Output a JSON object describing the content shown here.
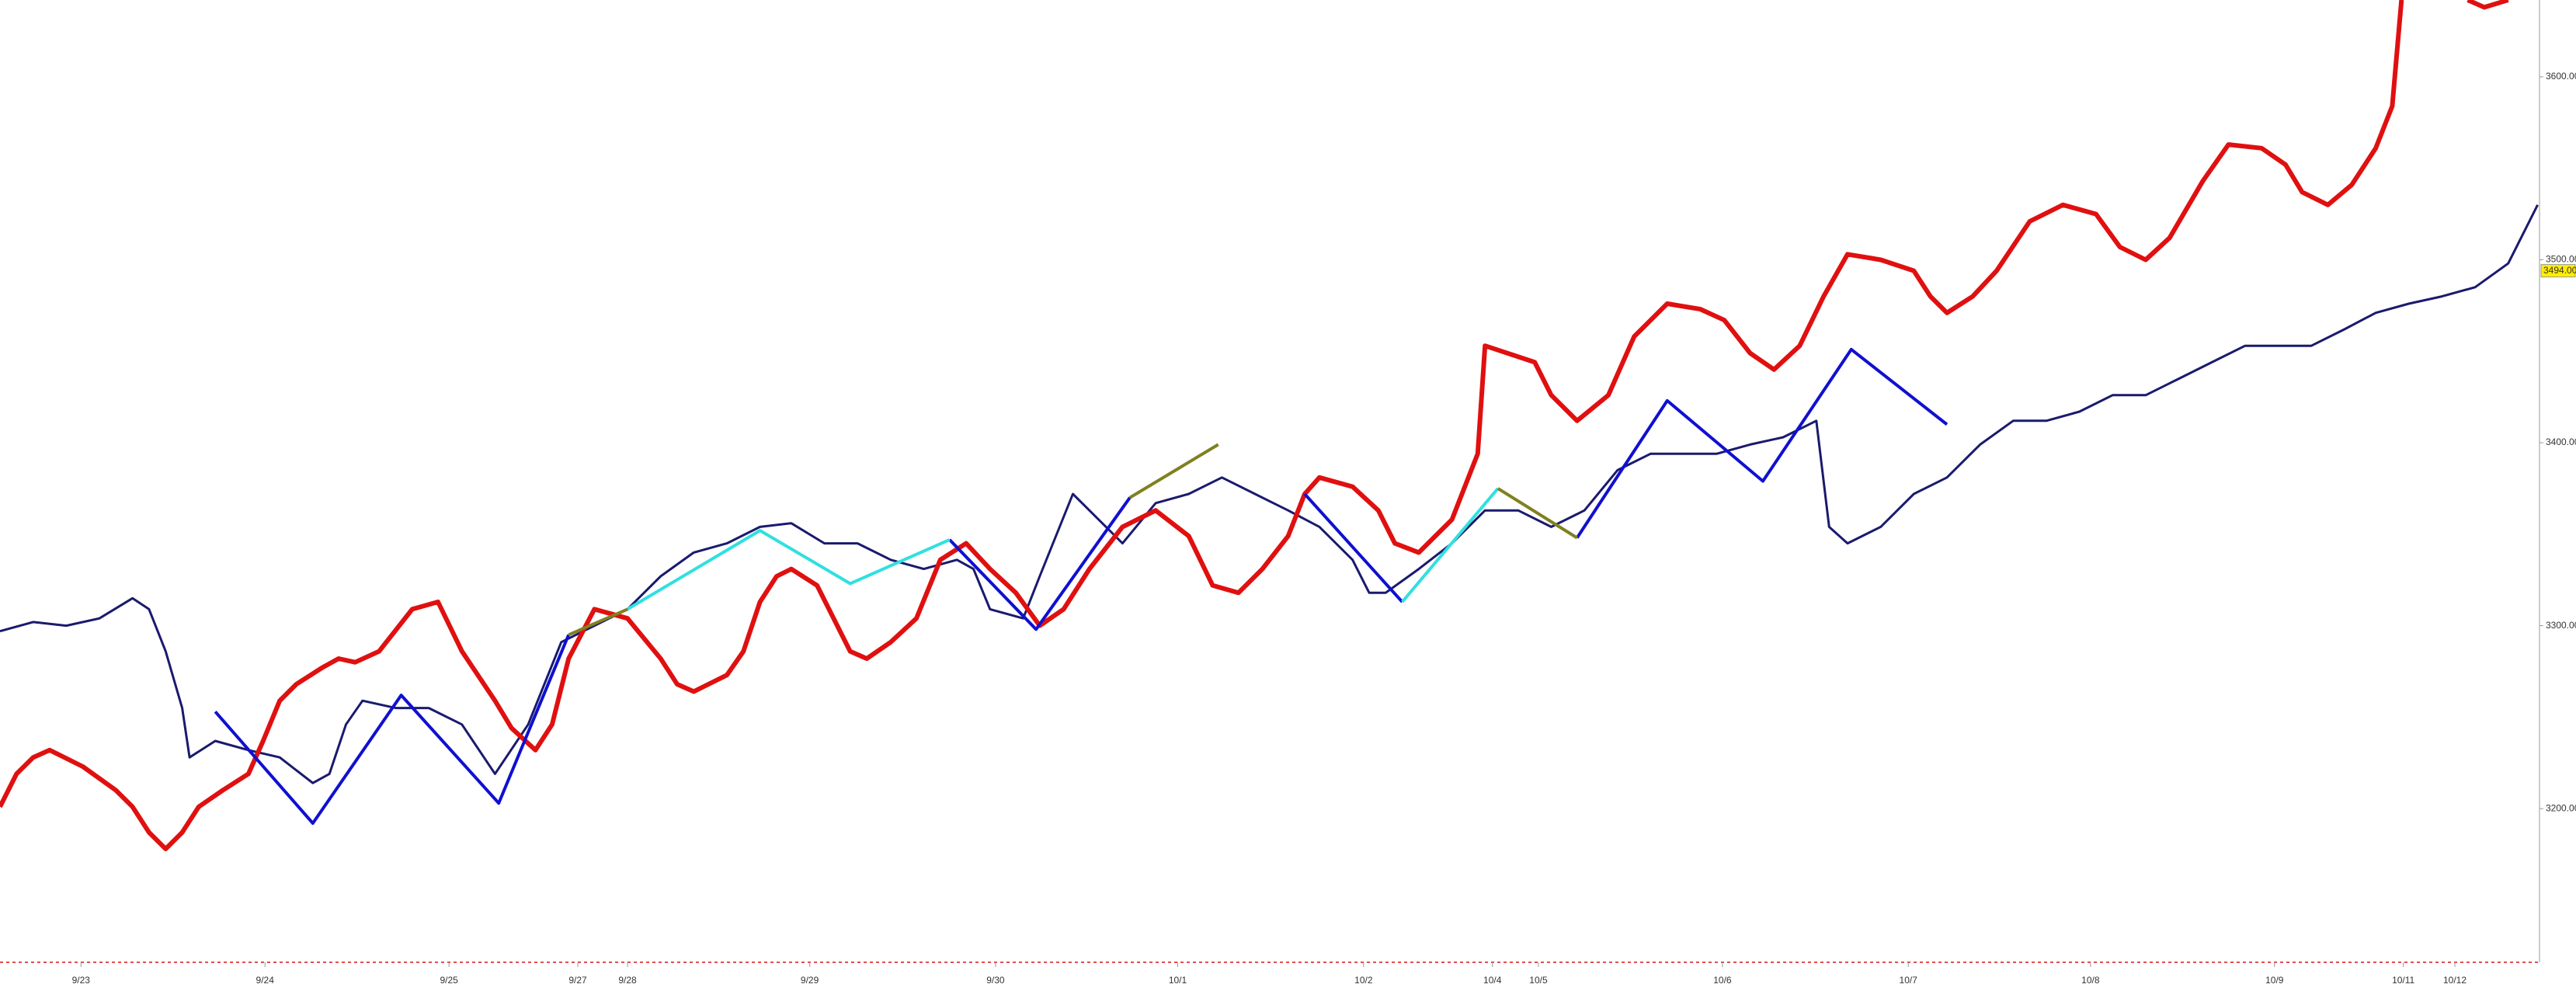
{
  "chart_data": {
    "type": "line",
    "xlim": [
      0,
      13.8
    ],
    "ylim": [
      3116,
      3642
    ],
    "yticks": [
      {
        "value": 3200,
        "label": "3200.00"
      },
      {
        "value": 3300,
        "label": "3300.00"
      },
      {
        "value": 3400,
        "label": "3400.00"
      },
      {
        "value": 3500,
        "label": "3500.00"
      },
      {
        "value": 3600,
        "label": "3600.00"
      }
    ],
    "xticks": [
      {
        "value": 0.44,
        "label": "9/23"
      },
      {
        "value": 1.44,
        "label": "9/24"
      },
      {
        "value": 2.44,
        "label": "9/25"
      },
      {
        "value": 3.14,
        "label": "9/27"
      },
      {
        "value": 3.41,
        "label": "9/28"
      },
      {
        "value": 4.4,
        "label": "9/29"
      },
      {
        "value": 5.41,
        "label": "9/30"
      },
      {
        "value": 6.4,
        "label": "10/1"
      },
      {
        "value": 7.41,
        "label": "10/2"
      },
      {
        "value": 8.11,
        "label": "10/4"
      },
      {
        "value": 8.36,
        "label": "10/5"
      },
      {
        "value": 9.36,
        "label": "10/6"
      },
      {
        "value": 10.37,
        "label": "10/7"
      },
      {
        "value": 11.36,
        "label": "10/8"
      },
      {
        "value": 12.36,
        "label": "10/9"
      },
      {
        "value": 13.06,
        "label": "10/11"
      },
      {
        "value": 13.34,
        "label": "10/12"
      }
    ],
    "last_price": {
      "value": 3494,
      "label": "3494.00"
    },
    "series": [
      {
        "color": "#1a1a6e",
        "width": 3,
        "x": [
          0,
          0.18,
          0.36,
          0.54,
          0.72,
          0.81,
          0.9,
          0.99,
          1.03,
          1.17,
          1.35,
          1.52,
          1.7,
          1.79,
          1.88,
          1.97,
          2.15,
          2.33,
          2.51,
          2.69,
          2.87,
          3.05,
          3.23,
          3.41,
          3.59,
          3.77,
          3.95,
          4.13,
          4.3,
          4.48,
          4.66,
          4.84,
          5.02,
          5.2,
          5.29,
          5.38,
          5.56,
          5.65,
          5.83,
          5.92,
          6.1,
          6.28,
          6.46,
          6.64,
          6.82,
          7.0,
          7.17,
          7.35,
          7.44,
          7.53,
          7.71,
          7.89,
          8.07,
          8.25,
          8.43,
          8.61,
          8.79,
          8.97,
          9.15,
          9.33,
          9.51,
          9.69,
          9.87,
          9.94,
          10.04,
          10.22,
          10.4,
          10.58,
          10.76,
          10.94,
          11.12,
          11.3,
          11.48,
          11.66,
          11.84,
          12.02,
          12.2,
          12.38,
          12.56,
          12.74,
          12.91,
          13.09,
          13.27,
          13.45,
          13.63,
          13.79
        ],
        "values": [
          3297,
          3302,
          3300,
          3304,
          3315,
          3309,
          3286,
          3255,
          3228,
          3237,
          3232,
          3228,
          3214,
          3219,
          3246,
          3259,
          3255,
          3255,
          3246,
          3219,
          3246,
          3291,
          3300,
          3309,
          3327,
          3340,
          3345,
          3354,
          3356,
          3345,
          3345,
          3336,
          3331,
          3336,
          3331,
          3309,
          3304,
          3327,
          3372,
          3363,
          3345,
          3367,
          3372,
          3381,
          3372,
          3363,
          3354,
          3336,
          3318,
          3318,
          3331,
          3345,
          3363,
          3363,
          3354,
          3363,
          3385,
          3394,
          3394,
          3394,
          3399,
          3403,
          3412,
          3354,
          3345,
          3354,
          3372,
          3381,
          3399,
          3412,
          3412,
          3417,
          3426,
          3426,
          3435,
          3444,
          3453,
          3453,
          3453,
          3462,
          3471,
          3476,
          3480,
          3485,
          3498,
          3530
        ]
      },
      {
        "color": "#e01010",
        "width": 6,
        "x": [
          0,
          0.09,
          0.18,
          0.27,
          0.45,
          0.63,
          0.72,
          0.81,
          0.9,
          0.99,
          1.08,
          1.21,
          1.35,
          1.43,
          1.52,
          1.61,
          1.75,
          1.84,
          1.93,
          2.06,
          2.24,
          2.38,
          2.51,
          2.69,
          2.78,
          2.91,
          3.0,
          3.09,
          3.23,
          3.41,
          3.59,
          3.68,
          3.77,
          3.95,
          4.04,
          4.13,
          4.22,
          4.3,
          4.44,
          4.53,
          4.62,
          4.71,
          4.84,
          4.98,
          5.11,
          5.25,
          5.38,
          5.52,
          5.65,
          5.78,
          5.92,
          6.1,
          6.28,
          6.46,
          6.59,
          6.73,
          6.86,
          7.0,
          7.09,
          7.17,
          7.35,
          7.49,
          7.58,
          7.71,
          7.89,
          8.03,
          8.07,
          8.34,
          8.43,
          8.57,
          8.74,
          8.88,
          9.06,
          9.24,
          9.37,
          9.51,
          9.64,
          9.78,
          9.91,
          10.04,
          10.22,
          10.4,
          10.49,
          10.58,
          10.72,
          10.85,
          11.03,
          11.21,
          11.39,
          11.52,
          11.66,
          11.79,
          11.97,
          12.11,
          12.29,
          12.42,
          12.51,
          12.65,
          12.78,
          12.91,
          13.0,
          13.05,
          13.2,
          13.41,
          13.5,
          13.63
        ],
        "values": [
          3201,
          3219,
          3228,
          3232,
          3223,
          3210,
          3201,
          3187,
          3178,
          3187,
          3201,
          3210,
          3219,
          3237,
          3259,
          3268,
          3277,
          3282,
          3280,
          3286,
          3309,
          3313,
          3286,
          3259,
          3244,
          3232,
          3246,
          3282,
          3309,
          3304,
          3282,
          3268,
          3264,
          3273,
          3286,
          3313,
          3327,
          3331,
          3322,
          3304,
          3286,
          3282,
          3291,
          3304,
          3336,
          3345,
          3331,
          3318,
          3300,
          3309,
          3331,
          3354,
          3363,
          3349,
          3322,
          3318,
          3331,
          3349,
          3372,
          3381,
          3376,
          3363,
          3345,
          3340,
          3358,
          3394,
          3453,
          3444,
          3426,
          3412,
          3426,
          3458,
          3476,
          3473,
          3467,
          3449,
          3440,
          3453,
          3480,
          3503,
          3500,
          3494,
          3480,
          3471,
          3480,
          3494,
          3521,
          3530,
          3525,
          3507,
          3500,
          3512,
          3543,
          3563,
          3561,
          3552,
          3537,
          3530,
          3541,
          3561,
          3584,
          3642,
          null,
          3642,
          3638,
          3642
        ]
      },
      {
        "color": "#1010d0",
        "width": 4,
        "x": [
          1.17,
          1.7,
          2.18,
          2.71,
          3.09,
          3.5,
          5.16,
          5.63,
          6.14,
          6.8,
          7.09,
          7.62,
          8.3,
          8.57,
          9.06,
          9.58,
          10.06,
          10.58
        ],
        "values": [
          3253,
          3192,
          3262,
          3203,
          3295,
          null,
          3347,
          3298,
          3370,
          null,
          3372,
          3313,
          null,
          3348,
          3423,
          3379,
          3451,
          3410
        ]
      },
      {
        "color": "#30e0e0",
        "width": 4,
        "x": [
          3.41,
          4.13,
          4.62,
          5.16,
          6.5,
          7.62,
          8.14
        ],
        "values": [
          3309,
          3352,
          3323,
          3347,
          null,
          3313,
          3375
        ]
      },
      {
        "color": "#808020",
        "width": 4,
        "x": [
          3.09,
          3.41,
          5,
          6.14,
          6.62,
          7.8,
          8.14,
          8.57
        ],
        "values": [
          3295,
          3309,
          null,
          3370,
          3399,
          null,
          3375,
          3348
        ]
      }
    ]
  }
}
